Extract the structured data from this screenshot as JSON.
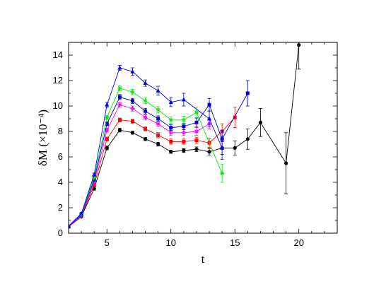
{
  "chart_data": {
    "type": "scatter",
    "title": "",
    "xlabel": "t",
    "ylabel": "δM  (×10⁻⁴)",
    "xlim": [
      2,
      23
    ],
    "ylim": [
      0,
      15
    ],
    "xticks": [
      5,
      10,
      15,
      20
    ],
    "yticks": [
      0,
      2,
      4,
      6,
      8,
      10,
      12,
      14
    ],
    "grid": false,
    "legend": "none",
    "series": [
      {
        "color": "#000000",
        "marker": "circle",
        "x": [
          2,
          3,
          4,
          5,
          6,
          7,
          8,
          9,
          10,
          11,
          12,
          13,
          14,
          15,
          16,
          17,
          19,
          20
        ],
        "y": [
          0.5,
          1.3,
          3.5,
          6.7,
          8.1,
          7.9,
          7.4,
          7.0,
          6.4,
          6.5,
          6.6,
          6.4,
          6.7,
          6.7,
          7.4,
          8.7,
          5.5,
          14.8
        ],
        "err": [
          0.05,
          0.08,
          0.12,
          0.15,
          0.15,
          0.12,
          0.12,
          0.15,
          0.12,
          0.15,
          0.18,
          0.25,
          0.5,
          0.55,
          0.8,
          1.1,
          2.4,
          1.9
        ]
      },
      {
        "color": "#ff0000",
        "marker": "square",
        "x": [
          2,
          3,
          4,
          5,
          6,
          7,
          8,
          9,
          10,
          11,
          12,
          13,
          14,
          15
        ],
        "y": [
          0.5,
          1.35,
          3.8,
          7.4,
          8.9,
          8.8,
          8.2,
          7.7,
          7.2,
          7.2,
          7.3,
          7.1,
          8.0,
          9.1
        ],
        "err": [
          0.05,
          0.08,
          0.12,
          0.15,
          0.15,
          0.15,
          0.15,
          0.2,
          0.2,
          0.2,
          0.25,
          0.35,
          0.6,
          0.8
        ]
      },
      {
        "color": "#ff00ff",
        "marker": "star",
        "x": [
          2,
          3,
          4,
          5,
          6,
          7,
          8,
          9,
          10,
          11,
          12,
          13
        ],
        "y": [
          0.52,
          1.4,
          4.0,
          8.1,
          10.1,
          9.8,
          9.1,
          8.6,
          7.9,
          7.9,
          8.0,
          8.6
        ],
        "err": [
          0.05,
          0.08,
          0.12,
          0.15,
          0.2,
          0.2,
          0.2,
          0.2,
          0.22,
          0.22,
          0.3,
          0.4
        ]
      },
      {
        "color": "#0000cc",
        "marker": "square",
        "x": [
          2,
          3,
          4,
          5,
          6,
          7,
          8,
          9,
          10,
          11,
          12,
          13,
          14,
          16
        ],
        "y": [
          0.53,
          1.45,
          4.2,
          8.6,
          10.7,
          10.4,
          9.6,
          9.0,
          8.3,
          8.4,
          8.7,
          10.1,
          7.4,
          11.0
        ],
        "err": [
          0.05,
          0.08,
          0.12,
          0.15,
          0.2,
          0.2,
          0.22,
          0.22,
          0.22,
          0.25,
          0.35,
          0.5,
          0.7,
          1.0
        ]
      },
      {
        "color": "#00ee00",
        "marker": "star",
        "x": [
          2,
          3,
          4,
          5,
          6,
          7,
          8,
          9,
          10,
          11,
          12,
          14
        ],
        "y": [
          0.55,
          1.5,
          4.4,
          9.1,
          11.4,
          11.1,
          10.4,
          9.7,
          8.9,
          8.9,
          9.5,
          4.7
        ],
        "err": [
          0.05,
          0.08,
          0.12,
          0.15,
          0.2,
          0.2,
          0.22,
          0.25,
          0.25,
          0.3,
          0.4,
          0.7
        ]
      },
      {
        "color": "#0000ff",
        "marker": "triangle",
        "x": [
          2,
          3,
          4,
          5,
          6,
          7,
          8,
          9,
          10,
          11,
          13,
          14
        ],
        "y": [
          0.57,
          1.55,
          4.6,
          10.1,
          13.0,
          12.7,
          11.8,
          11.2,
          10.3,
          10.5,
          9.0,
          6.7
        ],
        "err": [
          0.05,
          0.08,
          0.12,
          0.2,
          0.2,
          0.3,
          0.25,
          0.35,
          0.35,
          0.5,
          0.6,
          0.9
        ]
      }
    ]
  }
}
